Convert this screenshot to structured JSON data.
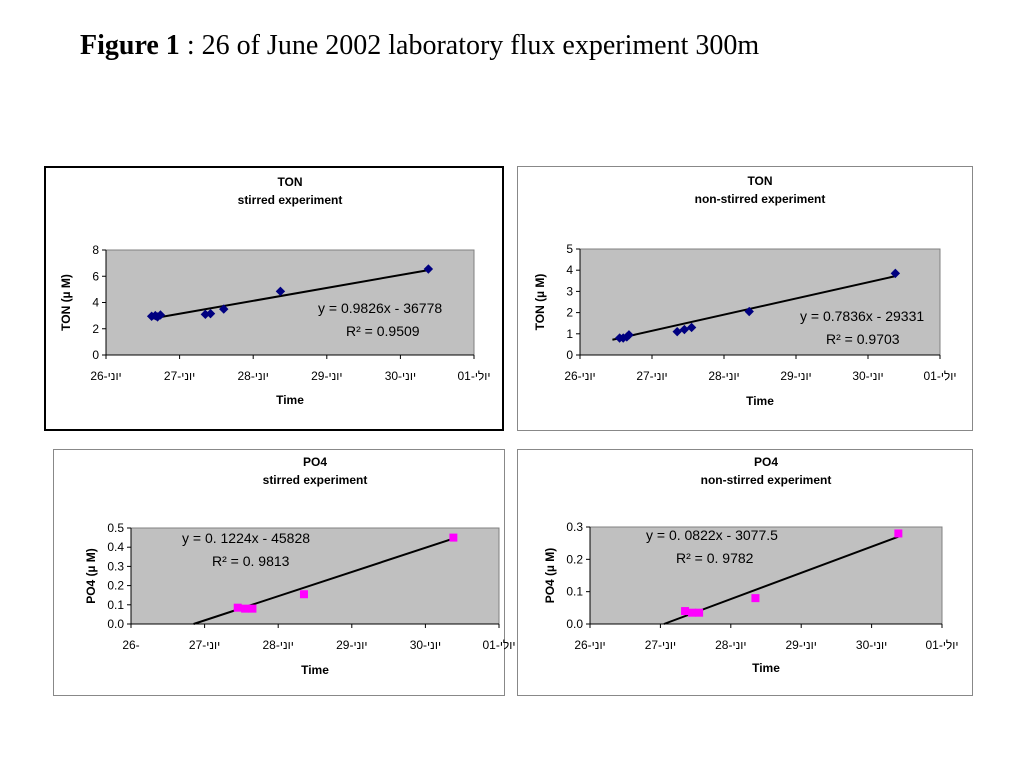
{
  "figure": {
    "label": "Figure 1",
    "caption": " : 26 of June 2002 laboratory flux experiment 300m"
  },
  "chart_data": [
    {
      "id": "ton-stirred",
      "type": "scatter",
      "title": "TON",
      "subtitle": "stirred experiment",
      "xlabel": "Time",
      "ylabel": "TON  (µ M)",
      "x_tick_labels": [
        "26-יוני",
        "27-יוני",
        "28-יוני",
        "29-יוני",
        "30-יוני",
        "01-יולי"
      ],
      "xlim": [
        26,
        31
      ],
      "ylim": [
        0,
        8
      ],
      "yticks": [
        "0",
        "2",
        "4",
        "6",
        "8"
      ],
      "grid": false,
      "plot_area_color": "#c0c0c0",
      "series": [
        {
          "marker": "diamond",
          "color": "#000080",
          "x": [
            26.62,
            26.67,
            26.7,
            26.74,
            27.35,
            27.42,
            27.6,
            28.37,
            30.38
          ],
          "y": [
            2.95,
            3.0,
            2.9,
            3.05,
            3.1,
            3.15,
            3.5,
            4.85,
            6.55
          ]
        }
      ],
      "trendline": {
        "x": [
          26.62,
          30.38
        ],
        "y": [
          2.77,
          6.47
        ]
      },
      "equation": "y = 0.9826x - 36778",
      "r2": "R² = 0.9509"
    },
    {
      "id": "ton-nonstirred",
      "type": "scatter",
      "title": "TON",
      "subtitle": "non-stirred experiment",
      "xlabel": "Time",
      "ylabel": "TON   (µ M)",
      "x_tick_labels": [
        "26-יוני",
        "27-יוני",
        "28-יוני",
        "29-יוני",
        "30-יוני",
        "01-יולי"
      ],
      "xlim": [
        26,
        31
      ],
      "ylim": [
        0,
        5
      ],
      "yticks": [
        "0",
        "1",
        "2",
        "3",
        "4",
        "5"
      ],
      "grid": false,
      "plot_area_color": "#c0c0c0",
      "series": [
        {
          "marker": "diamond",
          "color": "#000080",
          "x": [
            26.55,
            26.6,
            26.65,
            26.68,
            27.35,
            27.45,
            27.55,
            28.35,
            30.38
          ],
          "y": [
            0.8,
            0.8,
            0.85,
            0.95,
            1.1,
            1.2,
            1.3,
            2.05,
            3.85
          ]
        }
      ],
      "trendline": {
        "x": [
          26.45,
          30.38
        ],
        "y": [
          0.72,
          3.72
        ]
      },
      "equation": "y = 0.7836x - 29331",
      "r2": "R² = 0.9703"
    },
    {
      "id": "po4-stirred",
      "type": "scatter",
      "title": "PO4",
      "subtitle": "stirred experiment",
      "xlabel": "Time",
      "ylabel": "PO4    (µ M)",
      "x_tick_labels": [
        "26-",
        "27-יוני",
        "28-יוני",
        "29-יוני",
        "30-יוני",
        "01-יולי"
      ],
      "xlim": [
        26,
        31
      ],
      "ylim": [
        0,
        0.5
      ],
      "yticks": [
        "0.0",
        "0.1",
        "0.2",
        "0.3",
        "0.4",
        "0.5"
      ],
      "grid": false,
      "plot_area_color": "#c0c0c0",
      "series": [
        {
          "marker": "square",
          "color": "#ff00ff",
          "x": [
            27.45,
            27.55,
            27.65,
            28.35,
            30.38
          ],
          "y": [
            0.085,
            0.08,
            0.08,
            0.155,
            0.45
          ]
        }
      ],
      "trendline": {
        "x": [
          26.85,
          30.38
        ],
        "y": [
          0.0,
          0.445
        ]
      },
      "equation": "y = 0. 1224x -  45828",
      "r2": "R² = 0. 9813"
    },
    {
      "id": "po4-nonstirred",
      "type": "scatter",
      "title": "PO4",
      "subtitle": "non-stirred experiment",
      "xlabel": "Time",
      "ylabel": "PO4   (µ M)",
      "x_tick_labels": [
        "26-יוני",
        "27-יוני",
        "28-יוני",
        "29-יוני",
        "30-יוני",
        "01-יולי"
      ],
      "xlim": [
        26,
        31
      ],
      "ylim": [
        0,
        0.3
      ],
      "yticks": [
        "0.0",
        "0.1",
        "0.2",
        "0.3"
      ],
      "grid": false,
      "plot_area_color": "#c0c0c0",
      "series": [
        {
          "marker": "square",
          "color": "#ff00ff",
          "x": [
            27.35,
            27.45,
            27.55,
            28.35,
            30.38
          ],
          "y": [
            0.04,
            0.035,
            0.035,
            0.08,
            0.28
          ]
        }
      ],
      "trendline": {
        "x": [
          27.05,
          30.38
        ],
        "y": [
          0.0,
          0.27
        ]
      },
      "equation": "y = 0. 0822x -  3077.5",
      "r2": "R² = 0. 9782"
    }
  ]
}
